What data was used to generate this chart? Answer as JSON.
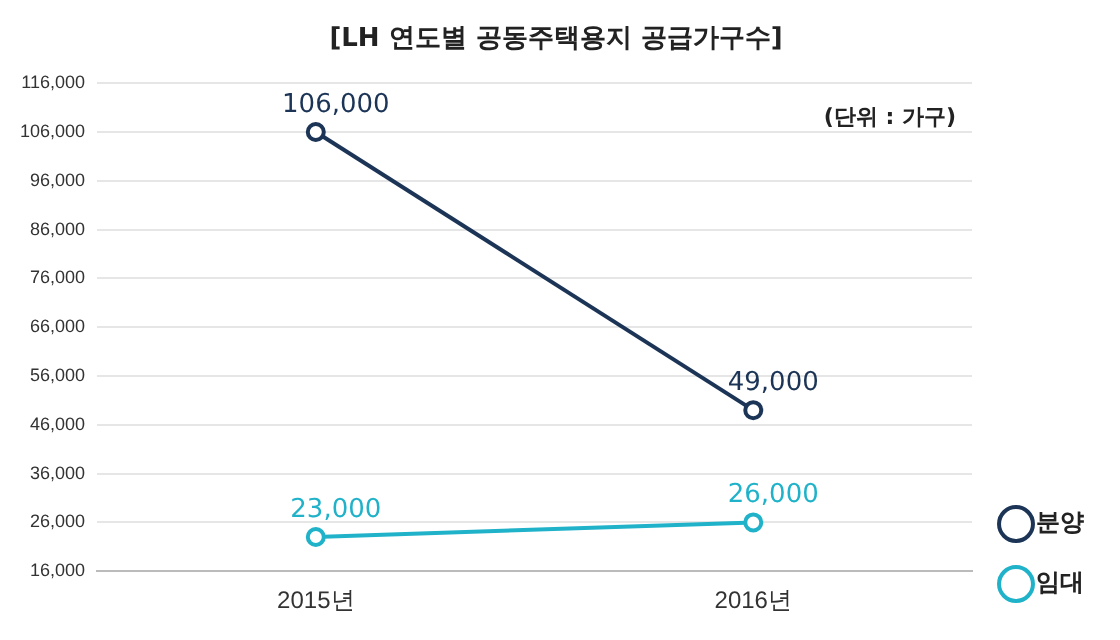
{
  "chart_data": {
    "type": "line",
    "title": "[LH 연도별 공동주택용지 공급가구수]",
    "categories": [
      "2015년",
      "2016년"
    ],
    "series": [
      {
        "name": "분양",
        "color": "#1c3557",
        "values": [
          106000,
          49000
        ],
        "value_labels": [
          "106,000",
          "49,000"
        ]
      },
      {
        "name": "임대",
        "color": "#20b2c9",
        "values": [
          23000,
          26000
        ],
        "value_labels": [
          "23,000",
          "26,000"
        ]
      }
    ],
    "ylim": [
      16000,
      116000
    ],
    "yticks": [
      {
        "value": 16000,
        "label": "16,000"
      },
      {
        "value": 26000,
        "label": "26,000"
      },
      {
        "value": 36000,
        "label": "36,000"
      },
      {
        "value": 46000,
        "label": "46,000"
      },
      {
        "value": 56000,
        "label": "56,000"
      },
      {
        "value": 66000,
        "label": "66,000"
      },
      {
        "value": 76000,
        "label": "76,000"
      },
      {
        "value": 86000,
        "label": "86,000"
      },
      {
        "value": 96000,
        "label": "96,000"
      },
      {
        "value": 106000,
        "label": "106,000"
      },
      {
        "value": 116000,
        "label": "116,000"
      }
    ],
    "grid": "y",
    "legend": "right",
    "marker": "circle",
    "annotations": [
      "(단위 : 가구)"
    ]
  }
}
